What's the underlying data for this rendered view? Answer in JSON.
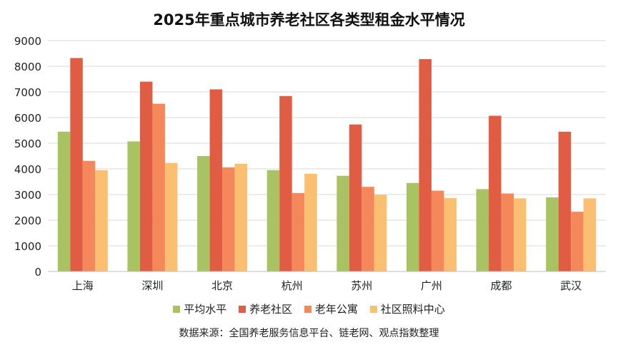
{
  "chart_data": {
    "type": "bar",
    "title": "2025年重点城市养老社区各类型租金水平情况",
    "categories": [
      "上海",
      "深圳",
      "北京",
      "杭州",
      "苏州",
      "广州",
      "成都",
      "武汉"
    ],
    "series": [
      {
        "name": "平均水平",
        "color": "#a9c262",
        "values": [
          5450,
          5070,
          4500,
          3950,
          3730,
          3450,
          3210,
          2890
        ]
      },
      {
        "name": "养老社区",
        "color": "#e05d43",
        "values": [
          8320,
          7400,
          7100,
          6840,
          5730,
          8280,
          6070,
          5450
        ]
      },
      {
        "name": "老年公寓",
        "color": "#f5885a",
        "values": [
          4310,
          6540,
          4060,
          3060,
          3300,
          3150,
          3040,
          2330
        ]
      },
      {
        "name": "社区照料中心",
        "color": "#fbbf72",
        "values": [
          3950,
          4230,
          4200,
          3810,
          2990,
          2860,
          2850,
          2850
        ]
      }
    ],
    "yticks": [
      "0",
      "1000",
      "2000",
      "3000",
      "4000",
      "5000",
      "6000",
      "7000",
      "8000",
      "9000"
    ],
    "ylim": [
      0,
      9000
    ],
    "grid": true,
    "legend_position": "bottom"
  },
  "source_note": "数据来源：全国养老服务信息平台、链老网、观点指数整理"
}
